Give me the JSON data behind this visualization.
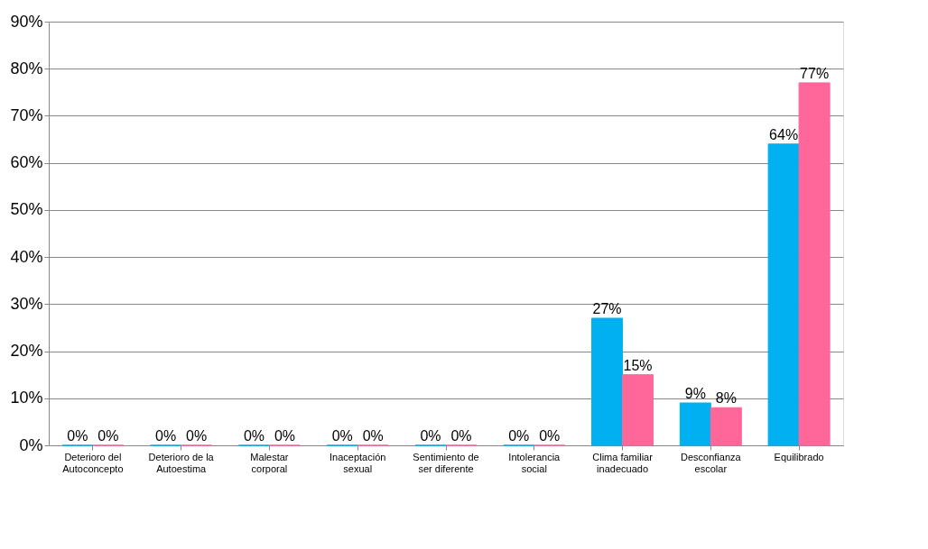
{
  "chart_data": {
    "type": "bar",
    "categories": [
      "Deterioro del\nAutoconcepto",
      "Deterioro de la\nAutoestima",
      "Malestar\ncorporal",
      "Inaceptación\nsexual",
      "Sentimiento de\nser diferente",
      "Intolerancia\nsocial",
      "Clima familiar\ninadecuado",
      "Desconfianza\nescolar",
      "Equilibrado"
    ],
    "series": [
      {
        "color": "#00b0f0",
        "values": [
          0,
          0,
          0,
          0,
          0,
          0,
          27,
          9,
          64
        ],
        "value_labels": [
          "0%",
          "0%",
          "0%",
          "0%",
          "0%",
          "0%",
          "27%",
          "9%",
          "64%"
        ]
      },
      {
        "color": "#ff6699",
        "values": [
          0,
          0,
          0,
          0,
          0,
          0,
          15,
          8,
          77
        ],
        "value_labels": [
          "0%",
          "0%",
          "0%",
          "0%",
          "0%",
          "0%",
          "15%",
          "8%",
          "77%"
        ]
      }
    ],
    "ylim": [
      0,
      90
    ],
    "yticks": [
      {
        "value": 0,
        "label": "0%"
      },
      {
        "value": 10,
        "label": "10%"
      },
      {
        "value": 20,
        "label": "20%"
      },
      {
        "value": 30,
        "label": "30%"
      },
      {
        "value": 40,
        "label": "40%"
      },
      {
        "value": 50,
        "label": "50%"
      },
      {
        "value": 60,
        "label": "60%"
      },
      {
        "value": 70,
        "label": "70%"
      },
      {
        "value": 80,
        "label": "80%"
      },
      {
        "value": 90,
        "label": "90%"
      }
    ],
    "grid": "y",
    "legend": false
  }
}
